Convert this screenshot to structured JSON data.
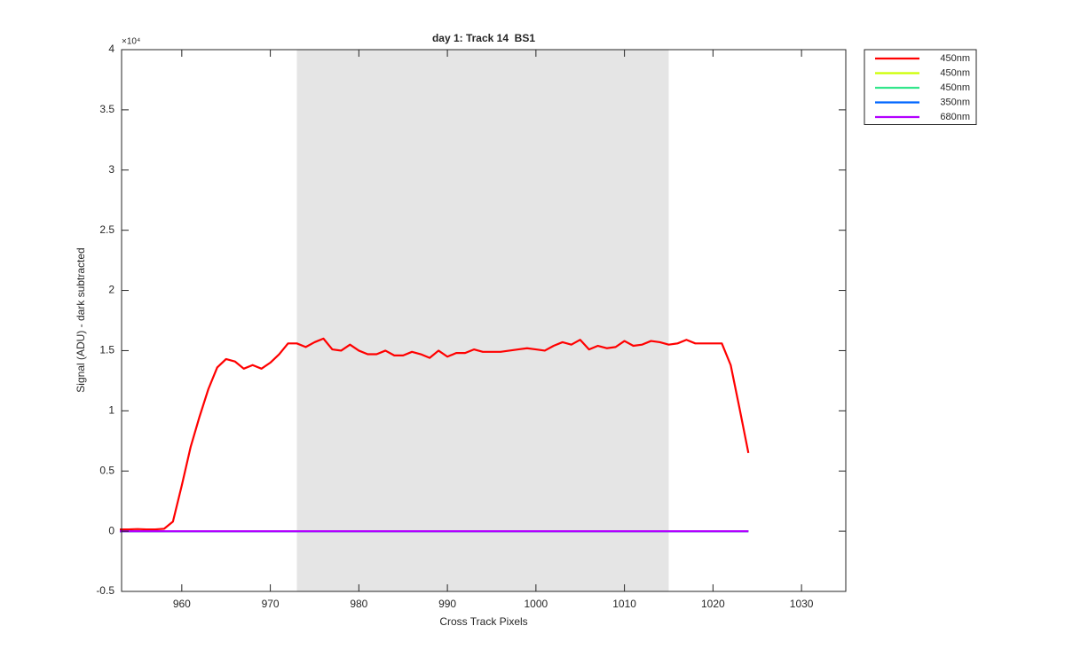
{
  "chart_data": {
    "type": "line",
    "title": "day 1: Track 14  BS1",
    "x_label": "Cross Track Pixels",
    "y_label": "Signal (ADU) - dark subtracted",
    "y_multiplier": "×10⁴",
    "x": [
      953,
      954,
      955,
      956,
      957,
      958,
      959,
      960,
      961,
      962,
      963,
      964,
      965,
      966,
      967,
      968,
      969,
      970,
      971,
      972,
      973,
      974,
      975,
      976,
      977,
      978,
      979,
      980,
      981,
      982,
      983,
      984,
      985,
      986,
      987,
      988,
      989,
      990,
      991,
      992,
      993,
      994,
      995,
      996,
      997,
      998,
      999,
      1000,
      1001,
      1002,
      1003,
      1004,
      1005,
      1006,
      1007,
      1008,
      1009,
      1010,
      1011,
      1012,
      1013,
      1014,
      1015,
      1016,
      1017,
      1018,
      1019,
      1020,
      1021,
      1022,
      1023,
      1024
    ],
    "series": [
      {
        "name": "450nm",
        "color": "#ff0000",
        "values": [
          0.015,
          0.015,
          0.018,
          0.015,
          0.015,
          0.02,
          0.08,
          0.38,
          0.7,
          0.95,
          1.18,
          1.36,
          1.43,
          1.41,
          1.35,
          1.38,
          1.35,
          1.4,
          1.47,
          1.56,
          1.56,
          1.53,
          1.57,
          1.6,
          1.51,
          1.5,
          1.55,
          1.5,
          1.47,
          1.47,
          1.5,
          1.46,
          1.46,
          1.49,
          1.47,
          1.44,
          1.5,
          1.45,
          1.48,
          1.48,
          1.51,
          1.49,
          1.49,
          1.49,
          1.5,
          1.51,
          1.52,
          1.51,
          1.5,
          1.54,
          1.57,
          1.55,
          1.59,
          1.51,
          1.54,
          1.52,
          1.53,
          1.58,
          1.54,
          1.55,
          1.58,
          1.57,
          1.55,
          1.56,
          1.59,
          1.56,
          1.56,
          1.56,
          1.56,
          1.38,
          1.02,
          0.65
        ]
      },
      {
        "name": "450nm",
        "color": "#ccff00",
        "values": [
          0,
          0,
          0,
          0,
          0,
          0,
          0,
          0,
          0,
          0,
          0,
          0,
          0,
          0,
          0,
          0,
          0,
          0,
          0,
          0,
          0,
          0,
          0,
          0,
          0,
          0,
          0,
          0,
          0,
          0,
          0,
          0,
          0,
          0,
          0,
          0,
          0,
          0,
          0,
          0,
          0,
          0,
          0,
          0,
          0,
          0,
          0,
          0,
          0,
          0,
          0,
          0,
          0,
          0,
          0,
          0,
          0,
          0,
          0,
          0,
          0,
          0,
          0,
          0,
          0,
          0,
          0,
          0,
          0,
          0,
          0,
          0
        ]
      },
      {
        "name": "450nm",
        "color": "#33e68c",
        "values": [
          0,
          0,
          0,
          0,
          0,
          0,
          0,
          0,
          0,
          0,
          0,
          0,
          0,
          0,
          0,
          0,
          0,
          0,
          0,
          0,
          0,
          0,
          0,
          0,
          0,
          0,
          0,
          0,
          0,
          0,
          0,
          0,
          0,
          0,
          0,
          0,
          0,
          0,
          0,
          0,
          0,
          0,
          0,
          0,
          0,
          0,
          0,
          0,
          0,
          0,
          0,
          0,
          0,
          0,
          0,
          0,
          0,
          0,
          0,
          0,
          0,
          0,
          0,
          0,
          0,
          0,
          0,
          0,
          0,
          0,
          0,
          0
        ]
      },
      {
        "name": "350nm",
        "color": "#0066ff",
        "values": [
          0,
          0,
          0,
          0,
          0,
          0,
          0,
          0,
          0,
          0,
          0,
          0,
          0,
          0,
          0,
          0,
          0,
          0,
          0,
          0,
          0,
          0,
          0,
          0,
          0,
          0,
          0,
          0,
          0,
          0,
          0,
          0,
          0,
          0,
          0,
          0,
          0,
          0,
          0,
          0,
          0,
          0,
          0,
          0,
          0,
          0,
          0,
          0,
          0,
          0,
          0,
          0,
          0,
          0,
          0,
          0,
          0,
          0,
          0,
          0,
          0,
          0,
          0,
          0,
          0,
          0,
          0,
          0,
          0,
          0,
          0,
          0
        ]
      },
      {
        "name": "680nm",
        "color": "#b300ff",
        "values": [
          0,
          0,
          0,
          0,
          0,
          0,
          0,
          0,
          0,
          0,
          0,
          0,
          0,
          0,
          0,
          0,
          0,
          0,
          0,
          0,
          0,
          0,
          0,
          0,
          0,
          0,
          0,
          0,
          0,
          0,
          0,
          0,
          0,
          0,
          0,
          0,
          0,
          0,
          0,
          0,
          0,
          0,
          0,
          0,
          0,
          0,
          0,
          0,
          0,
          0,
          0,
          0,
          0,
          0,
          0,
          0,
          0,
          0,
          0,
          0,
          0,
          0,
          0,
          0,
          0,
          0,
          0,
          0,
          0,
          0,
          0,
          0
        ]
      }
    ],
    "shaded_region": [
      973,
      1015
    ],
    "shaded_color": "#e5e5e5",
    "xlim": [
      953.2,
      1035
    ],
    "xticks": [
      960,
      970,
      980,
      990,
      1000,
      1010,
      1020,
      1030
    ],
    "ylim": [
      -0.5,
      4
    ],
    "yticks": [
      -0.5,
      0,
      0.5,
      1,
      1.5,
      2,
      2.5,
      3,
      3.5,
      4
    ],
    "legend": "outside-top-right"
  }
}
